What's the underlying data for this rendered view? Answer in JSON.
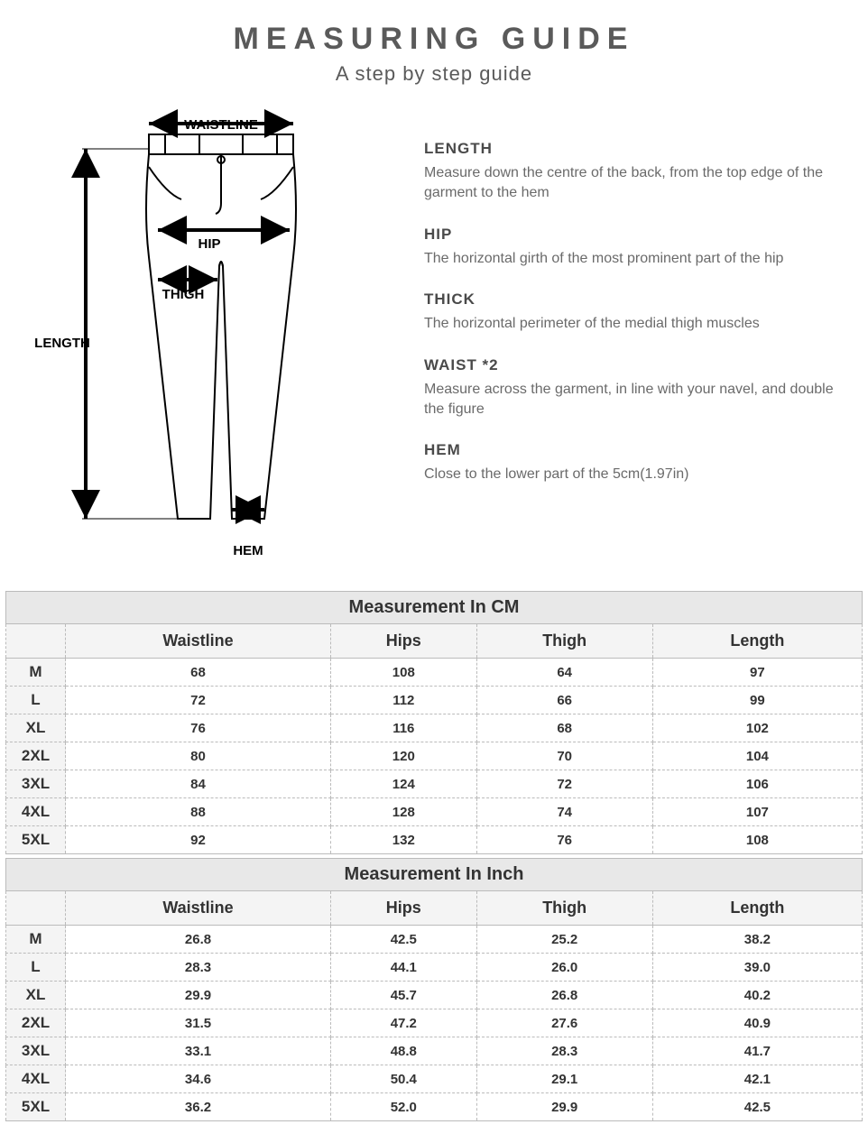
{
  "header": {
    "title": "MEASURING GUIDE",
    "subtitle": "A step by step guide"
  },
  "diagram_labels": {
    "waistline": "WAISTLINE",
    "hip": "HIP",
    "thigh": "THIGH",
    "length": "LENGTH",
    "hem": "HEM"
  },
  "descriptions": [
    {
      "title": "LENGTH",
      "text": "Measure down the centre of the back, from the top edge of the garment to the hem"
    },
    {
      "title": "HIP",
      "text": "The horizontal girth of the most prominent part of the hip"
    },
    {
      "title": "THICK",
      "text": "The horizontal perimeter of the medial thigh muscles"
    },
    {
      "title": "WAIST *2",
      "text": "Measure across the garment, in line with your navel, and double the figure"
    },
    {
      "title": "HEM",
      "text": "Close to the lower part of the 5cm(1.97in)"
    }
  ],
  "table_cm": {
    "title": "Measurement In CM",
    "columns": [
      "",
      "Waistline",
      "Hips",
      "Thigh",
      "Length"
    ],
    "rows": [
      [
        "M",
        "68",
        "108",
        "64",
        "97"
      ],
      [
        "L",
        "72",
        "112",
        "66",
        "99"
      ],
      [
        "XL",
        "76",
        "116",
        "68",
        "102"
      ],
      [
        "2XL",
        "80",
        "120",
        "70",
        "104"
      ],
      [
        "3XL",
        "84",
        "124",
        "72",
        "106"
      ],
      [
        "4XL",
        "88",
        "128",
        "74",
        "107"
      ],
      [
        "5XL",
        "92",
        "132",
        "76",
        "108"
      ]
    ]
  },
  "table_inch": {
    "title": "Measurement In Inch",
    "columns": [
      "",
      "Waistline",
      "Hips",
      "Thigh",
      "Length"
    ],
    "rows": [
      [
        "M",
        "26.8",
        "42.5",
        "25.2",
        "38.2"
      ],
      [
        "L",
        "28.3",
        "44.1",
        "26.0",
        "39.0"
      ],
      [
        "XL",
        "29.9",
        "45.7",
        "26.8",
        "40.2"
      ],
      [
        "2XL",
        "31.5",
        "47.2",
        "27.6",
        "40.9"
      ],
      [
        "3XL",
        "33.1",
        "48.8",
        "28.3",
        "41.7"
      ],
      [
        "4XL",
        "34.6",
        "50.4",
        "29.1",
        "42.1"
      ],
      [
        "5XL",
        "36.2",
        "52.0",
        "29.9",
        "42.5"
      ]
    ]
  },
  "styling": {
    "title_color": "#5a5a5a",
    "desc_title_color": "#4a4a4a",
    "desc_text_color": "#6a6a6a",
    "table_border_color": "#bbbbbb",
    "table_header_bg": "#f4f4f4",
    "table_title_bg": "#e8e8e8",
    "stroke_color": "#000000"
  }
}
